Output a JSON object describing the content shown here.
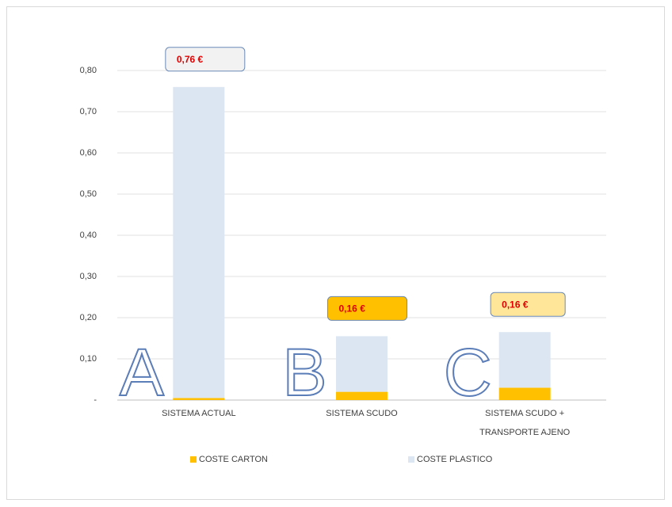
{
  "chart_data": {
    "type": "stacked_bar",
    "categories": [
      "SISTEMA ACTUAL",
      "SISTEMA SCUDO",
      "SISTEMA SCUDO + TRANSPORTE AJENO"
    ],
    "series": [
      {
        "name": "COSTE CARTON",
        "color": "#ffc000",
        "values": [
          0.005,
          0.02,
          0.03
        ]
      },
      {
        "name": "COSTE PLASTICO",
        "color": "#dce6f2",
        "values": [
          0.755,
          0.135,
          0.135
        ]
      }
    ],
    "ylim": [
      0,
      0.8
    ],
    "yticks": [
      {
        "value": 0,
        "label": "-"
      },
      {
        "value": 0.1,
        "label": "0,10"
      },
      {
        "value": 0.2,
        "label": "0,20"
      },
      {
        "value": 0.3,
        "label": "0,30"
      },
      {
        "value": 0.4,
        "label": "0,40"
      },
      {
        "value": 0.5,
        "label": "0,50"
      },
      {
        "value": 0.6,
        "label": "0,60"
      },
      {
        "value": 0.7,
        "label": "0,70"
      },
      {
        "value": 0.8,
        "label": "0,80"
      }
    ],
    "grid": true,
    "annotations": [
      {
        "text": "0,76 €",
        "color": "#f2f2f2"
      },
      {
        "text": "0,16 €",
        "color": "#ffc000"
      },
      {
        "text": "0,16 €",
        "color": "#ffe699"
      }
    ],
    "bar_letters": [
      "A",
      "B",
      "C"
    ]
  }
}
